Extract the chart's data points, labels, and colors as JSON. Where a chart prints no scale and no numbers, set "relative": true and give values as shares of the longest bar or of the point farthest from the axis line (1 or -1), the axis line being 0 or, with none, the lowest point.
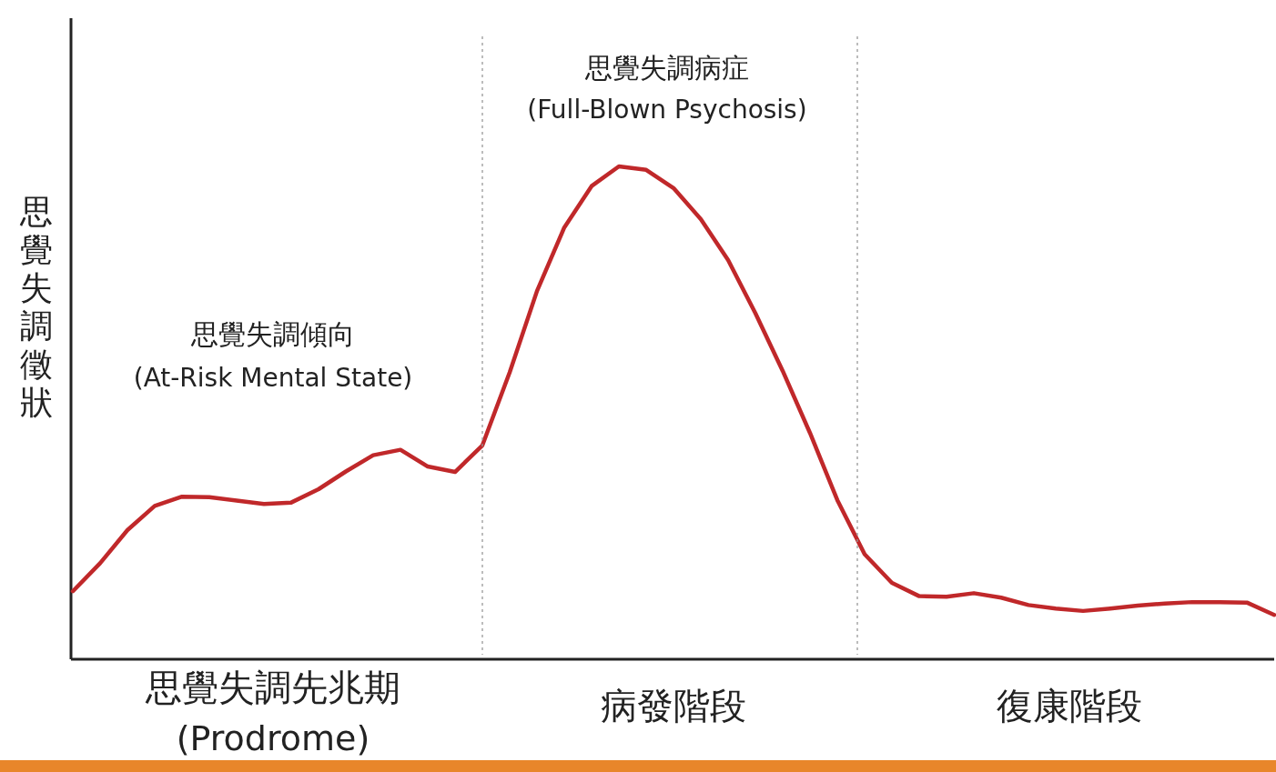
{
  "chart_data": {
    "type": "line",
    "relative": true,
    "ylabel": "思覺失調徵狀",
    "tick_labels": false,
    "marker": "none",
    "line_style": "solid",
    "categories": [
      null,
      null,
      null,
      null,
      null,
      null,
      null,
      null,
      null,
      null,
      null,
      null,
      null,
      null,
      null,
      null,
      null,
      null,
      null,
      null,
      null,
      null,
      null,
      null,
      null,
      null,
      null,
      null,
      null,
      null,
      null,
      null,
      null,
      null,
      null,
      null,
      null,
      null,
      null,
      null,
      null,
      null,
      null,
      null,
      null
    ],
    "series": [
      {
        "color": "#c0282a",
        "values": [
          0.138,
          0.195,
          0.262,
          0.311,
          0.33,
          0.329,
          0.322,
          0.315,
          0.318,
          0.345,
          0.381,
          0.414,
          0.425,
          0.391,
          0.38,
          0.434,
          0.582,
          0.747,
          0.876,
          0.96,
          1,
          0.993,
          0.956,
          0.893,
          0.81,
          0.702,
          0.585,
          0.459,
          0.323,
          0.213,
          0.155,
          0.128,
          0.127,
          0.134,
          0.125,
          0.11,
          0.103,
          0.098,
          0.103,
          0.109,
          0.113,
          0.116,
          0.116,
          0.115,
          0.09
        ]
      }
    ],
    "annotations": [
      "思覺失調傾向\n(At-Risk Mental State)",
      "思覺失調病症\n(Full-Blown Psychosis)",
      "思覺失調先兆期\n(Prodrome)",
      "病發階段",
      "復康階段"
    ]
  }
}
